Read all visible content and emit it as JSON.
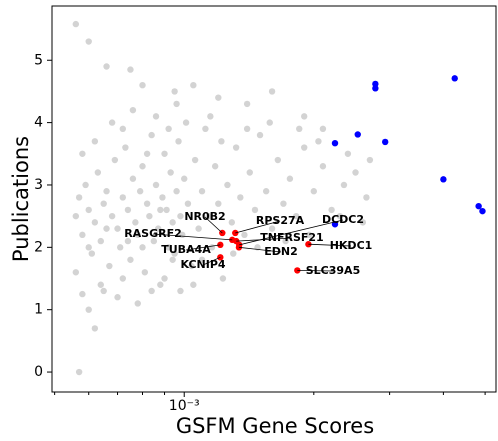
{
  "chart_data": {
    "type": "scatter",
    "xscale": "log",
    "xlabel": "GSFM Gene Scores",
    "ylabel": "Publications",
    "xlim": [
      0.000493,
      0.0053
    ],
    "ylim": [
      -0.32,
      5.87
    ],
    "xticks": [
      {
        "value": 0.001,
        "label": "10⁻³"
      }
    ],
    "xminorticks": [
      0.0005,
      0.0006,
      0.0007,
      0.0008,
      0.0009,
      0.002,
      0.003,
      0.004,
      0.005
    ],
    "yticks": [
      0,
      1,
      2,
      3,
      4,
      5
    ],
    "series": [
      {
        "color": "#d3d3d3",
        "x": [
          0.00057,
          0.00062,
          0.0006,
          0.00058,
          0.00065,
          0.00072,
          0.00056,
          0.0006,
          0.00066,
          0.00075,
          0.0008,
          0.00095,
          0.00105,
          0.0012,
          0.0014,
          0.0016,
          0.0019,
          0.0021,
          0.0024,
          0.0027,
          0.00056,
          0.00057,
          0.00058,
          0.00059,
          0.0006,
          0.00061,
          0.00062,
          0.00063,
          0.00064,
          0.00065,
          0.00066,
          0.00067,
          0.00068,
          0.00069,
          0.0007,
          0.00071,
          0.00072,
          0.00073,
          0.00074,
          0.00075,
          0.00076,
          0.00077,
          0.00078,
          0.00079,
          0.0008,
          0.00081,
          0.00082,
          0.00083,
          0.00084,
          0.00085,
          0.00086,
          0.00087,
          0.00088,
          0.00089,
          0.0009,
          0.00091,
          0.00092,
          0.00093,
          0.00094,
          0.00095,
          0.00096,
          0.00097,
          0.00098,
          0.00099,
          0.001,
          0.00102,
          0.00104,
          0.00106,
          0.00108,
          0.0011,
          0.00112,
          0.00114,
          0.00116,
          0.00118,
          0.0012,
          0.00123,
          0.00126,
          0.00129,
          0.00132,
          0.00135,
          0.00138,
          0.00142,
          0.00146,
          0.0015,
          0.00155,
          0.0016,
          0.00165,
          0.0017,
          0.00176,
          0.00182,
          0.0019,
          0.002,
          0.0021,
          0.0022,
          0.00235,
          0.0025,
          0.00265,
          0.00056,
          0.00058,
          0.0006,
          0.00062,
          0.00064,
          0.00066,
          0.00068,
          0.0007,
          0.00072,
          0.00074,
          0.00076,
          0.00078,
          0.0008,
          0.00082,
          0.00084,
          0.00086,
          0.00088,
          0.0009,
          0.00092,
          0.00094,
          0.00096,
          0.00098,
          0.00101,
          0.00105,
          0.0011,
          0.00115,
          0.00122,
          0.0013,
          0.0014,
          0.00148,
          0.00158,
          0.00172,
          0.00185,
          0.00195,
          0.00205,
          0.0023,
          0.0026
        ],
        "values": [
          0,
          0.7,
          1.0,
          1.25,
          1.3,
          1.5,
          5.58,
          5.3,
          4.9,
          4.85,
          4.6,
          4.5,
          4.6,
          4.4,
          4.3,
          4.5,
          4.1,
          3.9,
          3.5,
          3.4,
          2.5,
          2.8,
          2.2,
          3.0,
          2.6,
          1.9,
          2.4,
          3.2,
          2.1,
          2.7,
          2.9,
          1.7,
          2.5,
          3.4,
          2.3,
          2.0,
          2.8,
          3.6,
          2.6,
          1.8,
          3.1,
          2.4,
          2.2,
          2.9,
          3.3,
          1.6,
          2.7,
          2.5,
          3.8,
          2.1,
          3.0,
          2.3,
          1.4,
          2.8,
          3.5,
          2.6,
          2.0,
          3.2,
          2.4,
          1.9,
          2.9,
          3.7,
          2.5,
          2.2,
          3.1,
          2.7,
          1.7,
          3.4,
          2.3,
          2.9,
          3.9,
          2.5,
          2.0,
          3.3,
          2.7,
          1.5,
          3.0,
          2.4,
          3.6,
          2.8,
          2.2,
          3.2,
          2.6,
          3.8,
          2.9,
          2.3,
          3.4,
          2.7,
          3.1,
          2.5,
          3.6,
          2.9,
          3.3,
          2.6,
          3.0,
          3.2,
          2.8,
          1.6,
          3.5,
          2.0,
          3.7,
          1.4,
          2.3,
          4.0,
          1.2,
          3.9,
          2.1,
          4.2,
          1.1,
          2.0,
          3.5,
          1.3,
          4.1,
          2.6,
          1.5,
          3.9,
          1.8,
          4.3,
          1.3,
          4.0,
          1.4,
          1.8,
          4.1,
          3.7,
          1.9,
          3.9,
          2.0,
          4.0,
          2.1,
          3.9,
          2.2,
          3.7,
          2.5,
          2.4
        ]
      },
      {
        "color": "#0000ff",
        "x": [
          0.00224,
          0.00253,
          0.00278,
          0.00278,
          0.00293,
          0.004,
          0.00425,
          0.00483,
          0.00493,
          0.00224
        ],
        "values": [
          3.67,
          3.81,
          4.62,
          4.55,
          3.69,
          3.09,
          4.71,
          2.66,
          2.58,
          2.37
        ]
      },
      {
        "color": "#ff0000",
        "labels": [
          "NR0B2",
          "RPS27A",
          "DCDC2",
          "RASGRF2",
          "TNFRSF21",
          "HKDC1",
          "TUBA4A",
          "EDN2",
          "KCNIP4",
          "SLC39A5"
        ],
        "x": [
          0.001226,
          0.001314,
          0.001342,
          0.001293,
          0.001321,
          0.001943,
          0.001213,
          0.00134,
          0.001213,
          0.001831
        ],
        "values": [
          2.23,
          2.23,
          2.04,
          2.12,
          2.1,
          2.05,
          2.04,
          2.0,
          1.84,
          1.63
        ]
      }
    ]
  }
}
